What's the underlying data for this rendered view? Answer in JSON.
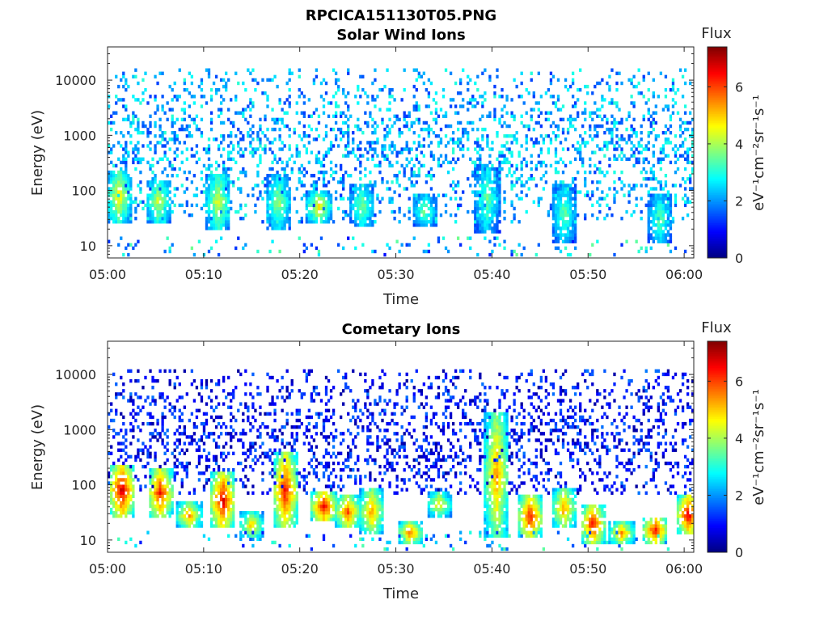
{
  "figure_title": "RPCICA151130T05.PNG",
  "chart_data": [
    {
      "type": "heatmap",
      "title": "Solar Wind Ions",
      "xlabel": "Time",
      "ylabel": "Energy (eV)",
      "x_ticks": [
        "05:00",
        "05:10",
        "05:20",
        "05:30",
        "05:40",
        "05:50",
        "06:00"
      ],
      "x_range": [
        "05:00",
        "06:01"
      ],
      "y_ticks": [
        "10",
        "100",
        "1000",
        "10000"
      ],
      "y_scale": "log",
      "y_range": [
        6,
        40000
      ],
      "colorbar": {
        "label": "Flux",
        "unit_label": "eV⁻¹cm⁻²sr⁻¹s⁻¹",
        "ticks": [
          "0",
          "2",
          "4",
          "6"
        ],
        "range": [
          0,
          7.4
        ],
        "colormap": "jet"
      },
      "features": {
        "background": {
          "min_energy_ev": 25,
          "max_energy_ev": 15000,
          "typical_flux": 2.2,
          "flux_spread": 0.9
        },
        "events": [
          {
            "time_min": 1.2,
            "e_low_ev": 25,
            "e_high_ev": 220,
            "peak_flux": 4.8
          },
          {
            "time_min": 5.3,
            "e_low_ev": 25,
            "e_high_ev": 150,
            "peak_flux": 4.4
          },
          {
            "time_min": 11.5,
            "e_low_ev": 18,
            "e_high_ev": 180,
            "peak_flux": 4.5
          },
          {
            "time_min": 17.8,
            "e_low_ev": 18,
            "e_high_ev": 180,
            "peak_flux": 4.0
          },
          {
            "time_min": 22.0,
            "e_low_ev": 25,
            "e_high_ev": 90,
            "peak_flux": 4.8
          },
          {
            "time_min": 26.5,
            "e_low_ev": 20,
            "e_high_ev": 120,
            "peak_flux": 3.8
          },
          {
            "time_min": 33.0,
            "e_low_ev": 20,
            "e_high_ev": 80,
            "peak_flux": 3.6
          },
          {
            "time_min": 39.5,
            "e_low_ev": 15,
            "e_high_ev": 300,
            "peak_flux": 3.6
          },
          {
            "time_min": 47.5,
            "e_low_ev": 10,
            "e_high_ev": 120,
            "peak_flux": 3.6
          },
          {
            "time_min": 57.5,
            "e_low_ev": 10,
            "e_high_ev": 80,
            "peak_flux": 3.6
          }
        ]
      }
    },
    {
      "type": "heatmap",
      "title": "Cometary Ions",
      "xlabel": "Time",
      "ylabel": "Energy (eV)",
      "x_ticks": [
        "05:00",
        "05:10",
        "05:20",
        "05:30",
        "05:40",
        "05:50",
        "06:00"
      ],
      "x_range": [
        "05:00",
        "06:01"
      ],
      "y_ticks": [
        "10",
        "100",
        "1000",
        "10000"
      ],
      "y_scale": "log",
      "y_range": [
        6,
        40000
      ],
      "colorbar": {
        "label": "Flux",
        "unit_label": "eV⁻¹cm⁻²sr⁻¹s⁻¹",
        "ticks": [
          "0",
          "2",
          "4",
          "6"
        ],
        "range": [
          0,
          7.4
        ],
        "colormap": "jet"
      },
      "features": {
        "background": {
          "min_energy_ev": 60,
          "max_energy_ev": 12000,
          "typical_flux": 1.0,
          "flux_spread": 0.8
        },
        "events": [
          {
            "time_min": 1.5,
            "e_low_ev": 25,
            "e_high_ev": 220,
            "peak_flux": 7.0
          },
          {
            "time_min": 5.5,
            "e_low_ev": 25,
            "e_high_ev": 180,
            "peak_flux": 6.5
          },
          {
            "time_min": 8.5,
            "e_low_ev": 15,
            "e_high_ev": 45,
            "peak_flux": 5.5
          },
          {
            "time_min": 12.0,
            "e_low_ev": 15,
            "e_high_ev": 160,
            "peak_flux": 6.8
          },
          {
            "time_min": 15.0,
            "e_low_ev": 10,
            "e_high_ev": 30,
            "peak_flux": 5.0
          },
          {
            "time_min": 18.5,
            "e_low_ev": 15,
            "e_high_ev": 350,
            "peak_flux": 6.5
          },
          {
            "time_min": 22.5,
            "e_low_ev": 20,
            "e_high_ev": 70,
            "peak_flux": 6.8
          },
          {
            "time_min": 25.0,
            "e_low_ev": 15,
            "e_high_ev": 60,
            "peak_flux": 6.0
          },
          {
            "time_min": 27.5,
            "e_low_ev": 12,
            "e_high_ev": 80,
            "peak_flux": 5.5
          },
          {
            "time_min": 31.5,
            "e_low_ev": 8,
            "e_high_ev": 20,
            "peak_flux": 5.8
          },
          {
            "time_min": 34.5,
            "e_low_ev": 25,
            "e_high_ev": 70,
            "peak_flux": 4.8
          },
          {
            "time_min": 40.5,
            "e_low_ev": 10,
            "e_high_ev": 2000,
            "peak_flux": 5.5
          },
          {
            "time_min": 44.0,
            "e_low_ev": 10,
            "e_high_ev": 60,
            "peak_flux": 6.5
          },
          {
            "time_min": 47.5,
            "e_low_ev": 15,
            "e_high_ev": 80,
            "peak_flux": 5.5
          },
          {
            "time_min": 50.5,
            "e_low_ev": 8,
            "e_high_ev": 40,
            "peak_flux": 6.5
          },
          {
            "time_min": 53.5,
            "e_low_ev": 8,
            "e_high_ev": 20,
            "peak_flux": 5.5
          },
          {
            "time_min": 57.0,
            "e_low_ev": 8,
            "e_high_ev": 25,
            "peak_flux": 6.5
          },
          {
            "time_min": 60.5,
            "e_low_ev": 12,
            "e_high_ev": 60,
            "peak_flux": 6.8
          }
        ]
      }
    }
  ]
}
